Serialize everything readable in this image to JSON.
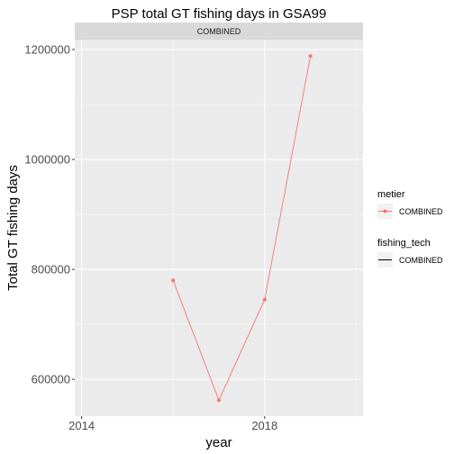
{
  "chart_data": {
    "type": "line",
    "title": "PSP total GT fishing days in GSA99",
    "facet_label": "COMBINED",
    "xlabel": "year",
    "ylabel": "Total GT fishing days",
    "x_ticks": [
      2014,
      2018
    ],
    "y_ticks": [
      600000,
      800000,
      1000000,
      1200000
    ],
    "y_tick_labels": [
      "600000",
      "800000",
      "1000000",
      "1200000"
    ],
    "x_minor_ticks": [
      2016,
      2020
    ],
    "y_minor_ticks": [
      700000,
      900000,
      1100000
    ],
    "xlim": [
      2013.85,
      2020.15
    ],
    "ylim": [
      533000,
      1218000
    ],
    "series": [
      {
        "name": "COMBINED",
        "color": "#F8766D",
        "x": [
          2016,
          2017,
          2018,
          2019
        ],
        "y": [
          780000,
          562000,
          745000,
          1188000
        ]
      }
    ],
    "legend": {
      "position": "right",
      "groups": [
        {
          "title": "metier",
          "key": "point-line",
          "label": "COMBINED"
        },
        {
          "title": "fishing_tech",
          "key": "line",
          "label": "COMBINED"
        }
      ]
    },
    "panel_background": "#EBEBEB",
    "strip_background": "#D9D9D9",
    "grid": true
  }
}
